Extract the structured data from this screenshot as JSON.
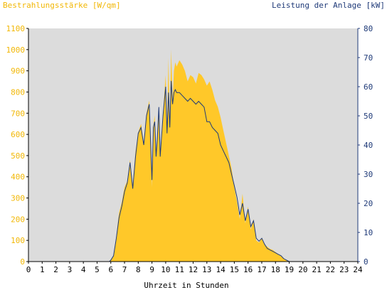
{
  "chart_data": {
    "type": "area",
    "left_axis_label": "Bestrahlungsstärke [W/qm]",
    "right_axis_label": "Leistung der Anlage [kW]",
    "xlabel": "Uhrzeit in Stunden",
    "xlim": [
      0,
      24
    ],
    "ylim_left": [
      0,
      1100
    ],
    "ylim_right": [
      0,
      80
    ],
    "x_ticks": [
      "0",
      "1",
      "2",
      "3",
      "4",
      "5",
      "6",
      "7",
      "8",
      "9",
      "10",
      "11",
      "12",
      "13",
      "14",
      "15",
      "16",
      "17",
      "18",
      "19",
      "20",
      "21",
      "22",
      "23",
      "24"
    ],
    "y_left_ticks": [
      "0",
      "100",
      "200",
      "300",
      "400",
      "500",
      "600",
      "700",
      "800",
      "900",
      "1000",
      "1100"
    ],
    "y_right_ticks": [
      "0",
      "10",
      "20",
      "30",
      "40",
      "50",
      "60",
      "70",
      "80"
    ],
    "grid": false,
    "colors": {
      "plot_bg": "#dcdcdc",
      "irradiance_fill": "#ffc829",
      "power_line": "#1f3a78",
      "left_axis_text": "#f2b705",
      "right_axis_text": "#1f3a78"
    },
    "series": [
      {
        "axis": "left",
        "style": "area",
        "x": [
          0,
          5.9,
          6.0,
          6.2,
          6.4,
          6.6,
          6.8,
          7.0,
          7.2,
          7.4,
          7.6,
          7.8,
          8.0,
          8.2,
          8.4,
          8.6,
          8.8,
          9.0,
          9.1,
          9.2,
          9.3,
          9.4,
          9.5,
          9.6,
          9.8,
          10.0,
          10.1,
          10.2,
          10.3,
          10.4,
          10.5,
          10.6,
          10.7,
          10.8,
          11.0,
          11.2,
          11.4,
          11.6,
          11.8,
          12.0,
          12.2,
          12.4,
          12.6,
          12.8,
          13.0,
          13.2,
          13.4,
          13.6,
          13.8,
          14.0,
          14.2,
          14.4,
          14.6,
          14.8,
          15.0,
          15.2,
          15.4,
          15.6,
          15.8,
          16.0,
          16.2,
          16.4,
          16.6,
          16.8,
          17.0,
          17.2,
          17.4,
          17.6,
          17.8,
          18.0,
          18.2,
          18.4,
          18.6,
          18.8,
          19.0,
          19.2,
          24
        ],
        "values": [
          0,
          0,
          5,
          30,
          120,
          230,
          280,
          350,
          380,
          480,
          360,
          520,
          610,
          650,
          560,
          700,
          760,
          350,
          640,
          690,
          520,
          600,
          730,
          500,
          700,
          880,
          600,
          960,
          650,
          1000,
          760,
          900,
          940,
          920,
          950,
          930,
          900,
          850,
          880,
          870,
          840,
          890,
          880,
          860,
          830,
          850,
          810,
          760,
          730,
          680,
          620,
          560,
          500,
          440,
          350,
          280,
          200,
          320,
          180,
          260,
          150,
          200,
          100,
          90,
          110,
          80,
          70,
          60,
          55,
          45,
          35,
          25,
          15,
          5,
          0,
          0,
          0
        ]
      },
      {
        "axis": "right",
        "style": "line",
        "x": [
          0,
          5.9,
          6.0,
          6.2,
          6.4,
          6.6,
          6.8,
          7.0,
          7.2,
          7.4,
          7.6,
          7.8,
          8.0,
          8.2,
          8.4,
          8.6,
          8.8,
          9.0,
          9.1,
          9.2,
          9.3,
          9.4,
          9.5,
          9.6,
          9.8,
          10.0,
          10.1,
          10.2,
          10.3,
          10.4,
          10.5,
          10.6,
          10.7,
          10.8,
          11.0,
          11.2,
          11.4,
          11.6,
          11.8,
          12.0,
          12.2,
          12.4,
          12.6,
          12.8,
          13.0,
          13.2,
          13.4,
          13.6,
          13.8,
          14.0,
          14.2,
          14.4,
          14.6,
          14.8,
          15.0,
          15.2,
          15.4,
          15.6,
          15.8,
          16.0,
          16.2,
          16.4,
          16.6,
          16.8,
          17.0,
          17.2,
          17.4,
          17.6,
          17.8,
          18.0,
          18.2,
          18.4,
          18.6,
          18.8,
          19.0,
          19.2,
          24
        ],
        "values": [
          0,
          0,
          0.5,
          2,
          8,
          15,
          19,
          24,
          27,
          34,
          25,
          36,
          44,
          46,
          40,
          50,
          54,
          28,
          46,
          48,
          36,
          43,
          53,
          36,
          50,
          60,
          44,
          58,
          46,
          62,
          54,
          58,
          59,
          58,
          58,
          57,
          56,
          55,
          56,
          55,
          54,
          55,
          54,
          53,
          48,
          48,
          46,
          45,
          44,
          40,
          38,
          36,
          34,
          30,
          26,
          22,
          16,
          20,
          14,
          18,
          12,
          14,
          8,
          7,
          8,
          6,
          4.5,
          4,
          3.5,
          3,
          2.5,
          2,
          1,
          0.5,
          0,
          0,
          0
        ]
      }
    ]
  }
}
